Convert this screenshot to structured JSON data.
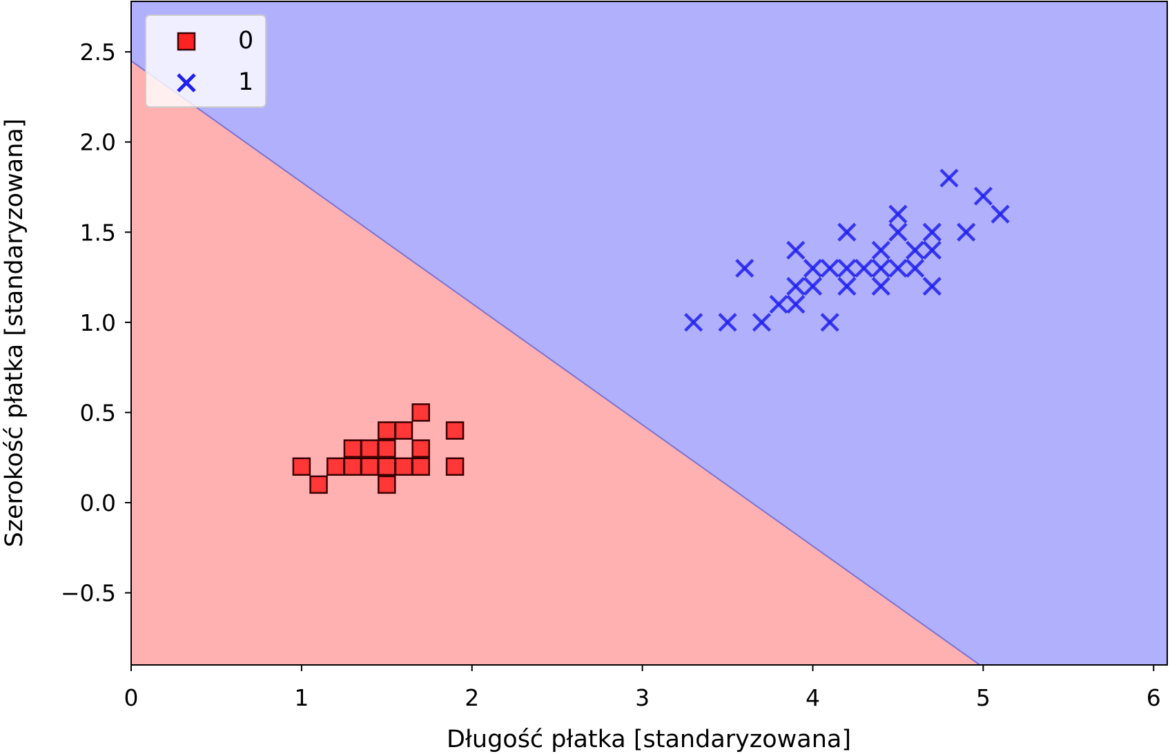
{
  "chart_data": {
    "type": "scatter",
    "xlabel": "Długość płatka [standaryzowana]",
    "ylabel": "Szerokość płatka [standaryzowana]",
    "xlim": [
      0,
      6.08
    ],
    "ylim": [
      -0.9,
      2.78
    ],
    "x_ticks": [
      {
        "value": 0,
        "label": "0"
      },
      {
        "value": 1,
        "label": "1"
      },
      {
        "value": 2,
        "label": "2"
      },
      {
        "value": 3,
        "label": "3"
      },
      {
        "value": 4,
        "label": "4"
      },
      {
        "value": 5,
        "label": "5"
      },
      {
        "value": 6,
        "label": "6"
      }
    ],
    "y_ticks": [
      {
        "value": -0.5,
        "label": "−0.5"
      },
      {
        "value": 0.0,
        "label": "0.0"
      },
      {
        "value": 0.5,
        "label": "0.5"
      },
      {
        "value": 1.0,
        "label": "1.0"
      },
      {
        "value": 1.5,
        "label": "1.5"
      },
      {
        "value": 2.0,
        "label": "2.0"
      },
      {
        "value": 2.5,
        "label": "2.5"
      }
    ],
    "grid": false,
    "legend_position": "top-left",
    "decision_boundary": {
      "points": [
        [
          0,
          2.45
        ],
        [
          4.98,
          -0.9
        ]
      ],
      "regions": [
        {
          "class": "0",
          "side": "below",
          "color": "#ffb0b0"
        },
        {
          "class": "1",
          "side": "above",
          "color": "#b0b0fc"
        }
      ],
      "line_color": "#7a72d8"
    },
    "series": [
      {
        "name": "0",
        "marker": "square",
        "color": "#ff2222",
        "edge_color": "#3a0000",
        "points": [
          [
            1.0,
            0.2
          ],
          [
            1.1,
            0.1
          ],
          [
            1.2,
            0.2
          ],
          [
            1.3,
            0.2
          ],
          [
            1.3,
            0.3
          ],
          [
            1.4,
            0.2
          ],
          [
            1.4,
            0.3
          ],
          [
            1.5,
            0.1
          ],
          [
            1.5,
            0.2
          ],
          [
            1.5,
            0.3
          ],
          [
            1.5,
            0.4
          ],
          [
            1.6,
            0.2
          ],
          [
            1.6,
            0.4
          ],
          [
            1.7,
            0.2
          ],
          [
            1.7,
            0.3
          ],
          [
            1.7,
            0.5
          ],
          [
            1.9,
            0.2
          ],
          [
            1.9,
            0.4
          ]
        ]
      },
      {
        "name": "1",
        "marker": "x",
        "color": "#2020ee",
        "points": [
          [
            3.3,
            1.0
          ],
          [
            3.5,
            1.0
          ],
          [
            3.6,
            1.3
          ],
          [
            3.7,
            1.0
          ],
          [
            3.8,
            1.1
          ],
          [
            3.9,
            1.1
          ],
          [
            3.9,
            1.2
          ],
          [
            3.9,
            1.4
          ],
          [
            4.0,
            1.2
          ],
          [
            4.0,
            1.3
          ],
          [
            4.1,
            1.0
          ],
          [
            4.1,
            1.3
          ],
          [
            4.2,
            1.2
          ],
          [
            4.2,
            1.3
          ],
          [
            4.2,
            1.5
          ],
          [
            4.3,
            1.3
          ],
          [
            4.4,
            1.2
          ],
          [
            4.4,
            1.3
          ],
          [
            4.4,
            1.4
          ],
          [
            4.5,
            1.3
          ],
          [
            4.5,
            1.5
          ],
          [
            4.5,
            1.6
          ],
          [
            4.6,
            1.3
          ],
          [
            4.6,
            1.4
          ],
          [
            4.7,
            1.2
          ],
          [
            4.7,
            1.4
          ],
          [
            4.7,
            1.5
          ],
          [
            4.8,
            1.8
          ],
          [
            4.9,
            1.5
          ],
          [
            5.0,
            1.7
          ],
          [
            5.1,
            1.6
          ]
        ]
      }
    ]
  }
}
